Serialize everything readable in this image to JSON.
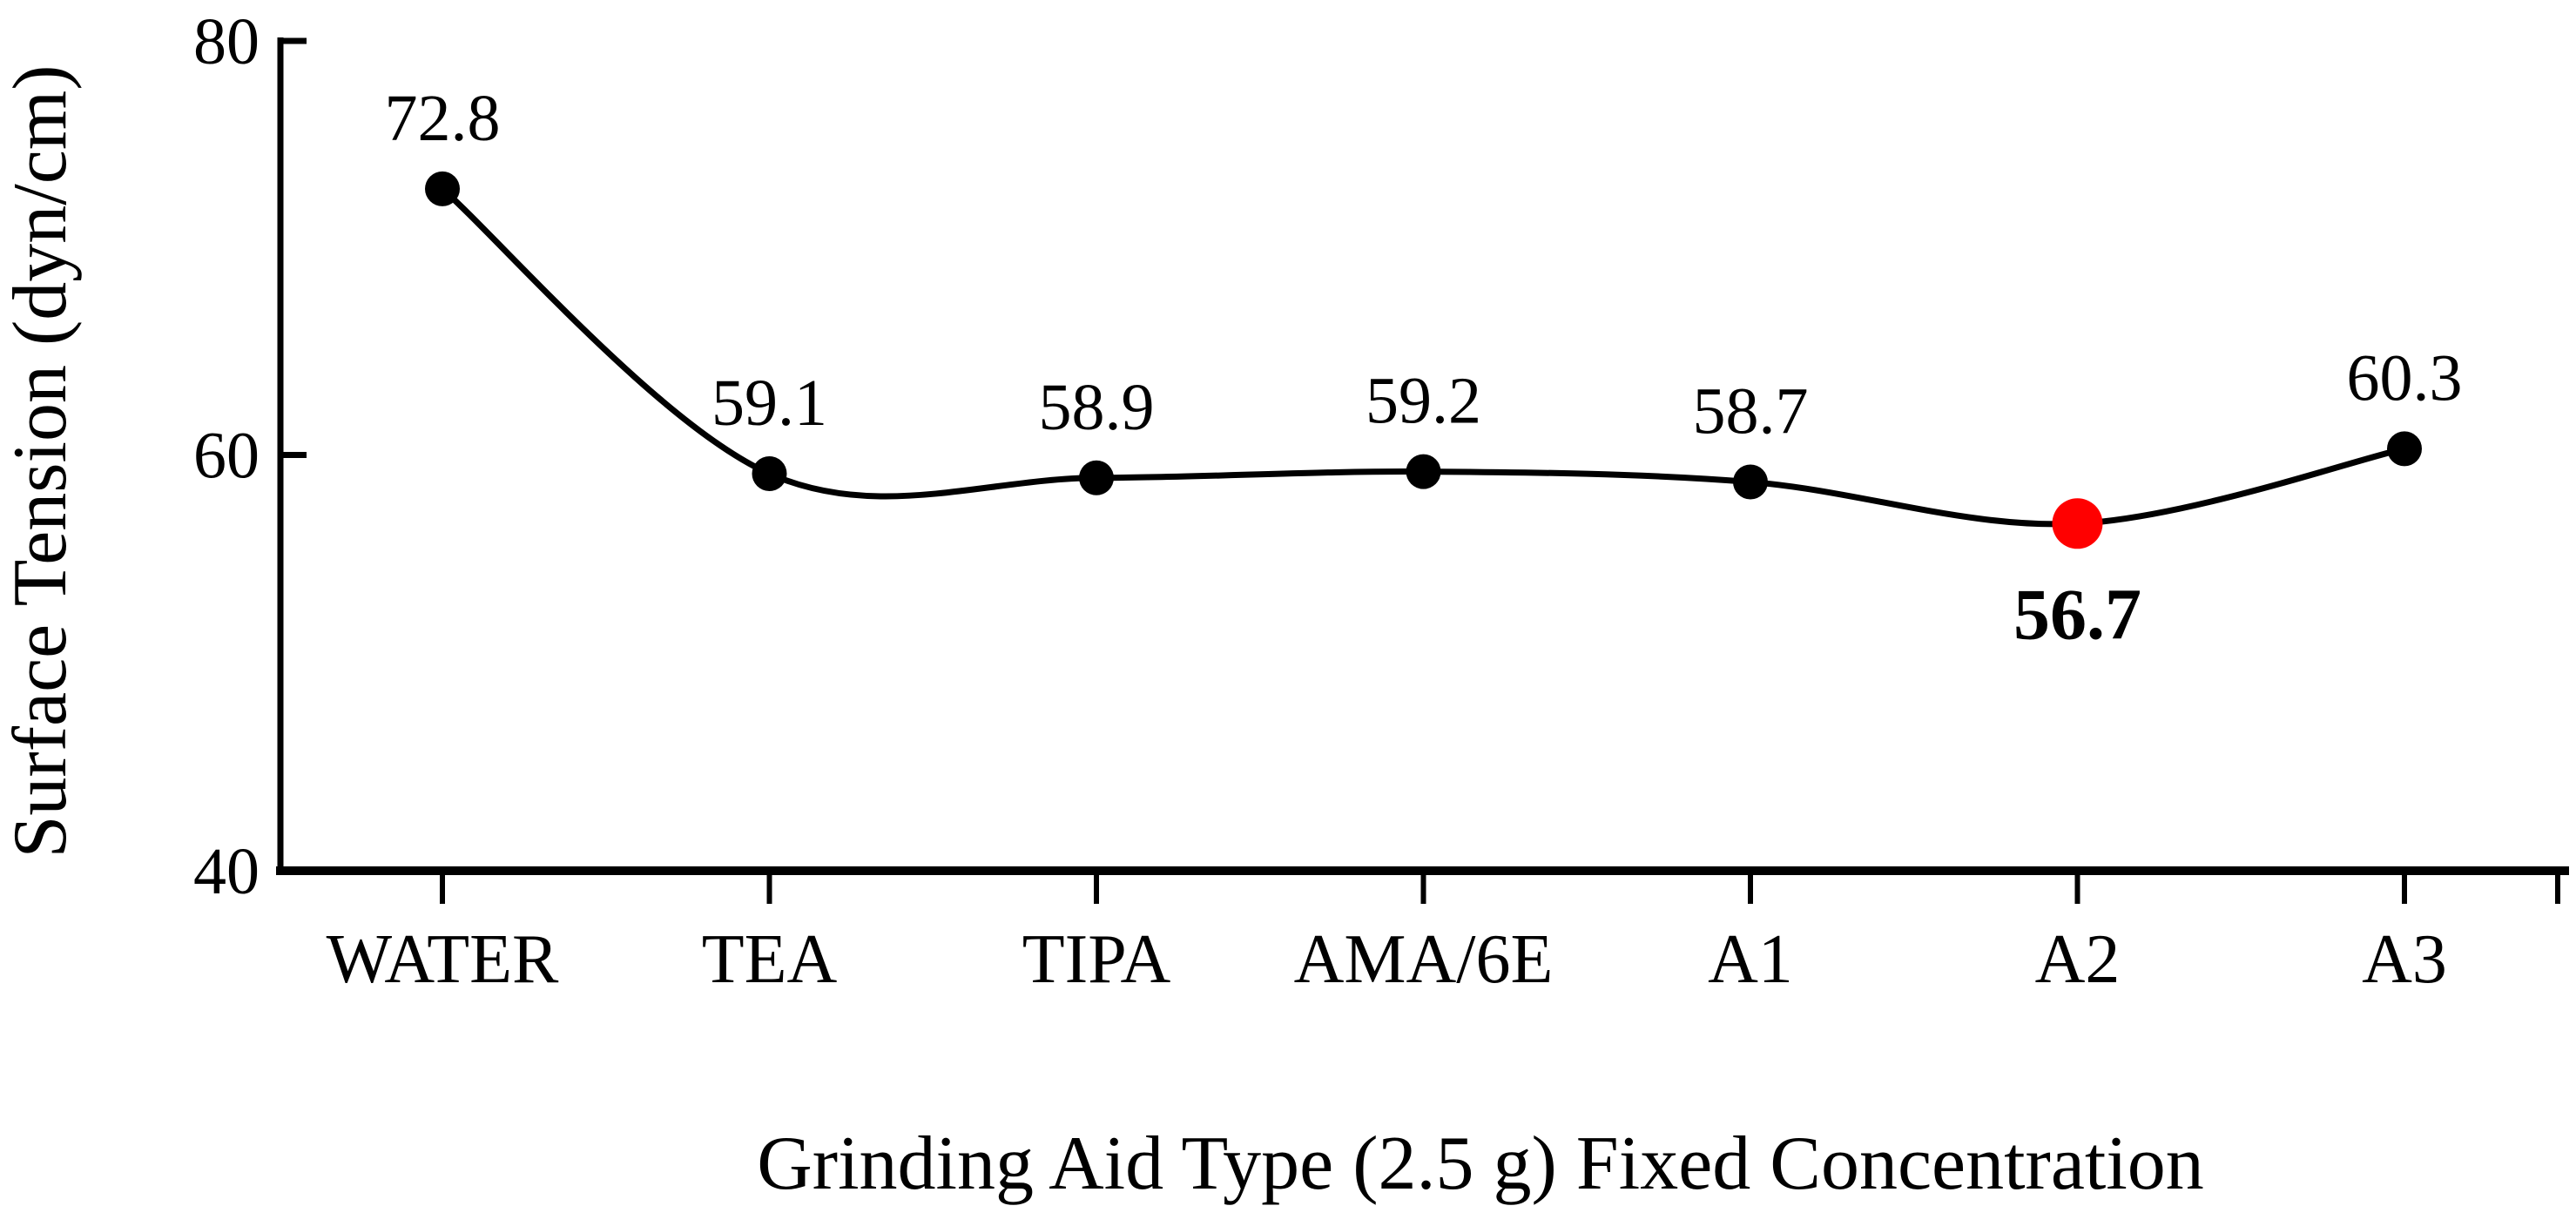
{
  "chart_data": {
    "type": "line",
    "title": "",
    "xlabel": "Grinding Aid Type (2.5 g) Fixed Concentration",
    "ylabel": "Surface Tension (dyn/cm)",
    "categories": [
      "WATER",
      "TEA",
      "TIPA",
      "AMA/6E",
      "A1",
      "A2",
      "A3"
    ],
    "series": [
      {
        "name": "Surface Tension",
        "values": [
          72.8,
          59.1,
          58.9,
          59.2,
          58.7,
          56.7,
          60.3
        ]
      }
    ],
    "point_labels": [
      "72.8",
      "59.1",
      "58.9",
      "59.2",
      "58.7",
      "56.7",
      "60.3"
    ],
    "highlight": {
      "category": "A2",
      "index": 5,
      "value": 56.7,
      "label": "56.7",
      "label_position": "below"
    },
    "ylim": [
      40,
      80
    ],
    "yticks": [
      40,
      60,
      80
    ],
    "grid": false,
    "legend": null,
    "line_shape": "smooth",
    "colors": {
      "line": "#000000",
      "marker": "#000000",
      "highlight_marker": "#ff0000",
      "highlight_label": "#ff0000",
      "text": "#000000",
      "background": "#ffffff"
    }
  }
}
